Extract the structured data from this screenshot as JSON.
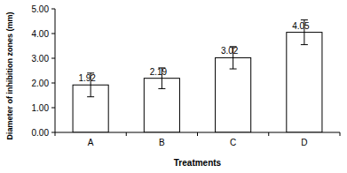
{
  "chart_data": {
    "type": "bar",
    "categories": [
      "A",
      "B",
      "C",
      "D"
    ],
    "values": [
      1.92,
      2.19,
      3.02,
      4.05
    ],
    "errors": [
      0.48,
      0.42,
      0.45,
      0.5
    ],
    "color": "#ffffff",
    "x_label": "Treatments",
    "y_label": "Diameter of inhibition zones (mm)",
    "ylim": [
      0,
      5
    ],
    "yticks": [
      {
        "value": 0,
        "label": "0.00"
      },
      {
        "value": 1,
        "label": "1.00"
      },
      {
        "value": 2,
        "label": "2.00"
      },
      {
        "value": 3,
        "label": "3.00"
      },
      {
        "value": 4,
        "label": "4.00"
      },
      {
        "value": 5,
        "label": "5.00"
      }
    ],
    "grid": false,
    "data_labels": true
  }
}
